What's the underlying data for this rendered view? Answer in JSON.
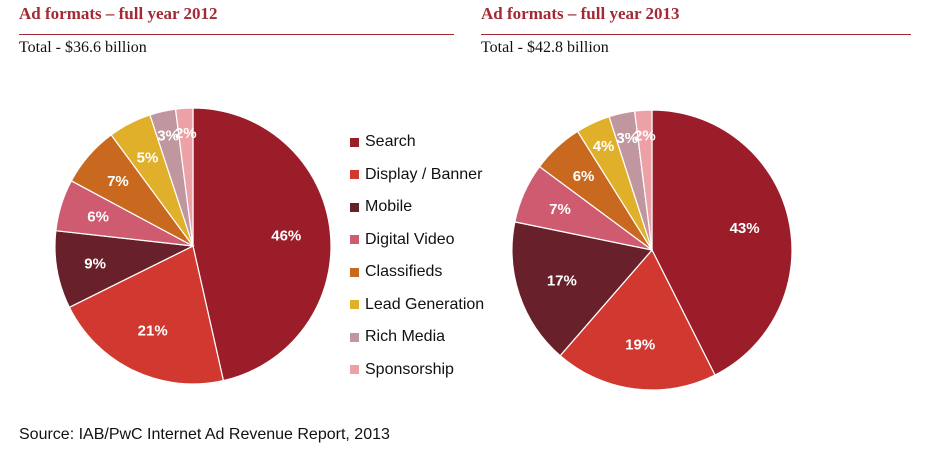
{
  "colors": {
    "Search": "#9b1d2a",
    "Display / Banner": "#d03830",
    "Mobile": "#68212a",
    "Digital Video": "#cf5b71",
    "Classifieds": "#c9691f",
    "Lead Generation": "#e0b02b",
    "Rich Media": "#c1979f",
    "Sponsorship": "#eca1a6",
    "title": "#a32a35"
  },
  "legend": [
    "Search",
    "Display / Banner",
    "Mobile",
    "Digital Video",
    "Classifieds",
    "Lead Generation",
    "Rich Media",
    "Sponsorship"
  ],
  "source": "Source: IAB/PwC Internet Ad Revenue Report, 2013",
  "chart_data": [
    {
      "type": "pie",
      "title": "Ad formats – full year 2012",
      "subtitle": "Total - $36.6 billion",
      "categories": [
        "Search",
        "Display / Banner",
        "Mobile",
        "Digital Video",
        "Classifieds",
        "Lead Generation",
        "Rich Media",
        "Sponsorship"
      ],
      "values": [
        46,
        21,
        9,
        6,
        7,
        5,
        3,
        2
      ],
      "unit": "%"
    },
    {
      "type": "pie",
      "title": "Ad formats – full year 2013",
      "subtitle": "Total - $42.8 billion",
      "categories": [
        "Search",
        "Display / Banner",
        "Mobile",
        "Digital Video",
        "Classifieds",
        "Lead Generation",
        "Rich Media",
        "Sponsorship"
      ],
      "values": [
        43,
        19,
        17,
        7,
        6,
        4,
        3,
        2
      ],
      "unit": "%"
    }
  ]
}
